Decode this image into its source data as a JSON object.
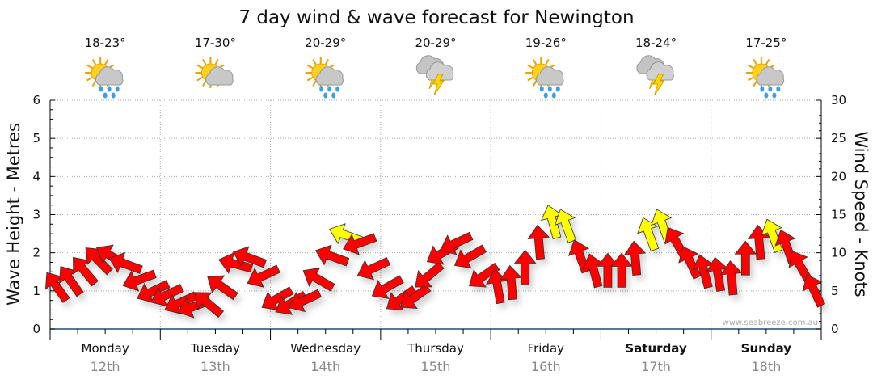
{
  "chart_data": {
    "type": "scatter",
    "title": "7 day wind & wave forecast for Newington",
    "ylabel_left": "Wave Height - Metres",
    "ylabel_right": "Wind Speed - Knots",
    "ylim_left": [
      0,
      6
    ],
    "yticks_left": [
      "0",
      "1",
      "2",
      "3",
      "4",
      "5",
      "6"
    ],
    "ylim_right": [
      0,
      30
    ],
    "yticks_right": [
      "0",
      "5",
      "10",
      "15",
      "20",
      "25",
      "30"
    ],
    "grid": true,
    "watermark": "www.seabreeze.com.au",
    "colors": {
      "normal": "#ff0000",
      "strong": "#ffff00",
      "outline": "#333333",
      "axis": "#1a4f7a",
      "grid": "#aaaaaa"
    },
    "strong_threshold_knots": 12,
    "days": [
      {
        "day": "Monday",
        "date": "12th",
        "temp": "18-23°",
        "icon": "sun-cloud-rain",
        "bold": false
      },
      {
        "day": "Tuesday",
        "date": "13th",
        "temp": "17-30°",
        "icon": "sun-cloud",
        "bold": false
      },
      {
        "day": "Wednesday",
        "date": "14th",
        "temp": "20-29°",
        "icon": "sun-cloud-rain",
        "bold": false
      },
      {
        "day": "Thursday",
        "date": "15th",
        "temp": "20-29°",
        "icon": "thunderstorm",
        "bold": false
      },
      {
        "day": "Friday",
        "date": "16th",
        "temp": "19-26°",
        "icon": "sun-cloud-rain",
        "bold": false
      },
      {
        "day": "Saturday",
        "date": "17th",
        "temp": "18-24°",
        "icon": "thunderstorm",
        "bold": true
      },
      {
        "day": "Sunday",
        "date": "18th",
        "temp": "17-25°",
        "icon": "sun-cloud-rain",
        "bold": true
      }
    ],
    "wind_series_hours": [
      1.5,
      4.5,
      7.5,
      10.5,
      13.5,
      16.5,
      19.5,
      22.5
    ],
    "wind_speed_knots": [
      [
        5.5,
        6.3,
        7.6,
        9.0,
        9.5,
        8.5,
        6.5,
        5.0
      ],
      [
        4.5,
        3.5,
        3.0,
        3.3,
        5.5,
        8.5,
        9.3,
        7.0
      ],
      [
        4.0,
        3.4,
        3.8,
        6.5,
        9.5,
        12.3,
        11.3,
        8.0
      ],
      [
        5.5,
        4.0,
        4.2,
        7.0,
        10.0,
        11.3,
        9.5,
        7.0
      ],
      [
        5.5,
        6.0,
        8.0,
        11.3,
        14.0,
        13.5,
        9.5,
        7.6
      ],
      [
        7.6,
        7.6,
        9.2,
        12.4,
        13.5,
        11.3,
        8.7,
        7.5
      ],
      [
        7.1,
        6.6,
        9.2,
        11.3,
        12.2,
        10.8,
        8.2,
        5.0
      ]
    ],
    "wind_arrow_heading_deg": [
      [
        325,
        325,
        320,
        315,
        300,
        290,
        250,
        245
      ],
      [
        245,
        245,
        250,
        310,
        305,
        285,
        290,
        245
      ],
      [
        240,
        240,
        245,
        300,
        290,
        290,
        250,
        245
      ],
      [
        240,
        235,
        235,
        230,
        240,
        245,
        240,
        235
      ],
      [
        350,
        355,
        0,
        355,
        345,
        340,
        340,
        345
      ],
      [
        0,
        0,
        355,
        340,
        340,
        330,
        335,
        345
      ],
      [
        350,
        355,
        0,
        355,
        340,
        340,
        330,
        335
      ]
    ]
  }
}
